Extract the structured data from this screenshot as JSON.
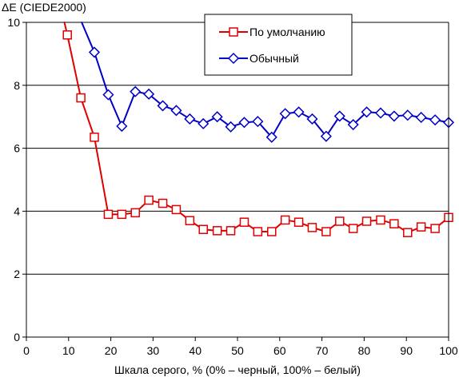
{
  "chart_data": {
    "type": "line",
    "title": "",
    "ylabel": "ΔE (CIEDE2000)",
    "xlabel": "Шкала серого, % (0% – черный, 100% – белый)",
    "xlim": [
      0,
      100
    ],
    "ylim": [
      0,
      10
    ],
    "x_ticks": [
      0,
      10,
      20,
      30,
      40,
      50,
      60,
      70,
      80,
      90,
      100
    ],
    "x_tick_labels": [
      "0",
      "10",
      "20",
      "30",
      "40",
      "50",
      "60",
      "70",
      "80",
      "90",
      "100"
    ],
    "y_ticks": [
      0,
      2,
      4,
      6,
      8,
      10
    ],
    "y_tick_labels": [
      "0",
      "2",
      "4",
      "6",
      "8",
      "10"
    ],
    "grid": "horizontal",
    "legend_position": "top-right",
    "series": [
      {
        "name": "По умолчанию",
        "color": "#e00000",
        "marker": "square",
        "x": [
          9.7,
          12.9,
          16.1,
          19.4,
          22.6,
          25.8,
          29.0,
          32.3,
          35.5,
          38.7,
          41.9,
          45.2,
          48.4,
          51.6,
          54.8,
          58.1,
          61.3,
          64.5,
          67.7,
          71.0,
          74.2,
          77.4,
          80.6,
          83.9,
          87.1,
          90.3,
          93.5,
          96.8,
          100.0
        ],
        "y": [
          9.6,
          7.6,
          6.35,
          3.9,
          3.9,
          3.95,
          4.35,
          4.25,
          4.05,
          3.7,
          3.42,
          3.38,
          3.38,
          3.65,
          3.35,
          3.35,
          3.72,
          3.65,
          3.48,
          3.35,
          3.68,
          3.45,
          3.68,
          3.72,
          3.6,
          3.32,
          3.5,
          3.45,
          3.8
        ],
        "leading_segment": {
          "x": [
            9.0,
            9.7
          ],
          "y": [
            10.0,
            9.6
          ]
        }
      },
      {
        "name": "Обычный",
        "color": "#0000c8",
        "marker": "diamond",
        "x": [
          16.1,
          19.4,
          22.6,
          25.8,
          29.0,
          32.3,
          35.5,
          38.7,
          41.9,
          45.2,
          48.4,
          51.6,
          54.8,
          58.1,
          61.3,
          64.5,
          67.7,
          71.0,
          74.2,
          77.4,
          80.6,
          83.9,
          87.1,
          90.3,
          93.5,
          96.8,
          100.0
        ],
        "y": [
          9.05,
          7.7,
          6.7,
          7.8,
          7.72,
          7.35,
          7.2,
          6.93,
          6.78,
          7.0,
          6.68,
          6.82,
          6.85,
          6.35,
          7.1,
          7.15,
          6.93,
          6.38,
          7.02,
          6.75,
          7.15,
          7.12,
          7.02,
          7.05,
          6.98,
          6.9,
          6.82
        ],
        "leading_segment": {
          "x": [
            13.1,
            16.1
          ],
          "y": [
            10.0,
            9.05
          ]
        }
      }
    ]
  }
}
